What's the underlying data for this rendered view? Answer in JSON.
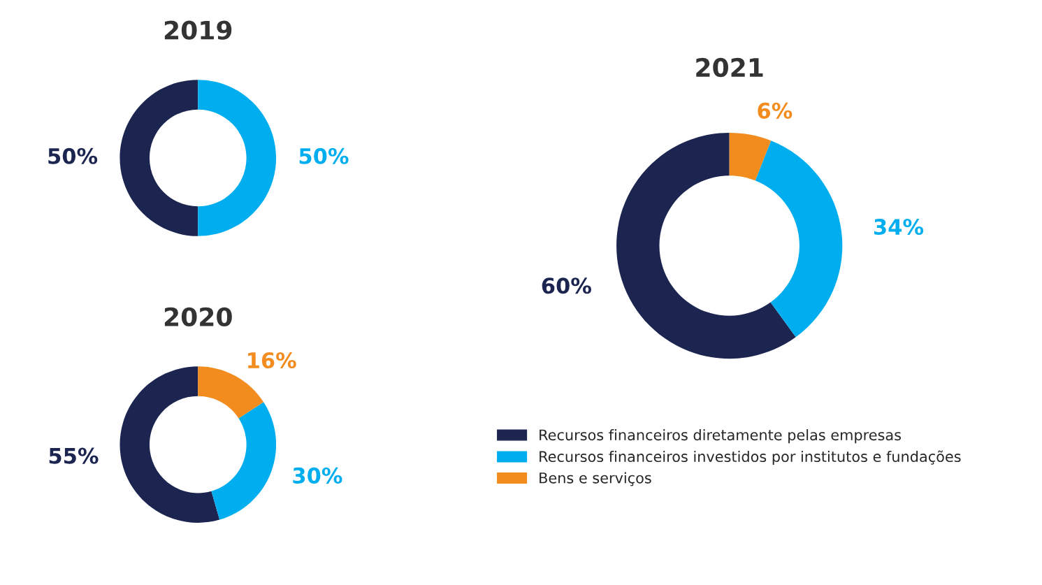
{
  "chart_data": [
    {
      "type": "donut",
      "title": "2019",
      "categories": [
        null,
        null
      ],
      "values": [
        50,
        50
      ],
      "colors": [
        "#1b2550",
        "#00aeef"
      ],
      "value_labels": [
        "50%",
        "50%"
      ]
    },
    {
      "type": "donut",
      "title": "2020",
      "categories": [
        null,
        null,
        null
      ],
      "values": [
        55,
        30,
        16
      ],
      "colors": [
        "#1b2550",
        "#00aeef",
        "#f28c1e"
      ],
      "value_labels": [
        "55%",
        "30%",
        "16%"
      ]
    },
    {
      "type": "donut",
      "title": "2021",
      "categories": [
        "Recursos financeiros diretamente pelas empresas",
        "Recursos financeiros investidos por institutos e fundações",
        "Bens e serviços"
      ],
      "values": [
        60,
        34,
        6
      ],
      "colors": [
        "#1b2550",
        "#00aeef",
        "#f28c1e"
      ],
      "value_labels": [
        "60%",
        "34%",
        "6%"
      ],
      "legend": "bottom"
    }
  ]
}
